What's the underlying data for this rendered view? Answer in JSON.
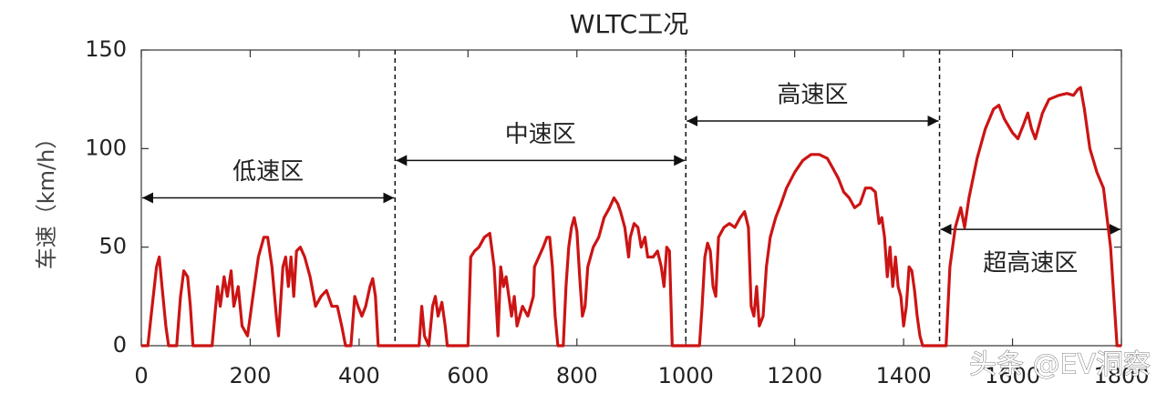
{
  "chart_data": {
    "type": "line",
    "title": "WLTC工况",
    "y_label": "车速（km/h）",
    "watermark": "头条 @EV洞察",
    "color": "#cc1414",
    "xlim": [
      0,
      1800
    ],
    "ylim": [
      0,
      150
    ],
    "xticks": [
      0,
      200,
      400,
      600,
      800,
      1000,
      1200,
      1400,
      1600,
      1800
    ],
    "yticks": [
      0,
      50,
      100,
      150
    ],
    "regions": [
      {
        "label": "低速区",
        "start": 0,
        "end": 466,
        "level": 75
      },
      {
        "label": "中速区",
        "start": 466,
        "end": 1000,
        "level": 94
      },
      {
        "label": "高速区",
        "start": 1000,
        "end": 1466,
        "level": 114
      },
      {
        "label": "超高速区",
        "start": 1466,
        "end": 1800,
        "level": 59
      }
    ],
    "x": [
      0,
      12,
      20,
      28,
      33,
      38,
      45,
      50,
      65,
      72,
      78,
      85,
      90,
      95,
      130,
      140,
      145,
      152,
      158,
      165,
      170,
      178,
      185,
      195,
      205,
      215,
      225,
      232,
      240,
      248,
      252,
      260,
      265,
      270,
      275,
      280,
      285,
      292,
      300,
      310,
      320,
      330,
      340,
      350,
      360,
      368,
      375,
      385,
      392,
      398,
      405,
      412,
      420,
      425,
      430,
      435,
      466,
      510,
      515,
      520,
      528,
      535,
      540,
      545,
      552,
      558,
      562,
      600,
      605,
      612,
      620,
      630,
      640,
      648,
      652,
      655,
      660,
      665,
      670,
      675,
      680,
      685,
      690,
      700,
      710,
      720,
      722,
      730,
      738,
      745,
      750,
      755,
      760,
      765,
      775,
      780,
      785,
      790,
      795,
      800,
      805,
      810,
      815,
      820,
      830,
      840,
      850,
      860,
      868,
      875,
      880,
      888,
      895,
      898,
      905,
      912,
      918,
      925,
      930,
      940,
      948,
      955,
      960,
      965,
      970,
      975,
      1000,
      1025,
      1030,
      1035,
      1040,
      1045,
      1050,
      1055,
      1060,
      1070,
      1080,
      1090,
      1100,
      1108,
      1115,
      1120,
      1125,
      1130,
      1135,
      1142,
      1148,
      1155,
      1165,
      1175,
      1185,
      1200,
      1215,
      1230,
      1245,
      1260,
      1270,
      1280,
      1290,
      1300,
      1310,
      1320,
      1330,
      1340,
      1348,
      1355,
      1360,
      1365,
      1370,
      1375,
      1380,
      1385,
      1390,
      1395,
      1400,
      1405,
      1410,
      1415,
      1420,
      1425,
      1430,
      1435,
      1466,
      1478,
      1485,
      1495,
      1505,
      1512,
      1520,
      1535,
      1550,
      1565,
      1575,
      1585,
      1600,
      1610,
      1620,
      1628,
      1635,
      1642,
      1655,
      1667,
      1685,
      1700,
      1712,
      1720,
      1725,
      1732,
      1742,
      1755,
      1767,
      1780,
      1792,
      1800
    ],
    "values": [
      0,
      0,
      20,
      40,
      45,
      30,
      10,
      0,
      0,
      25,
      38,
      35,
      20,
      0,
      0,
      30,
      20,
      35,
      25,
      38,
      20,
      30,
      10,
      5,
      25,
      45,
      55,
      55,
      40,
      15,
      5,
      40,
      45,
      30,
      45,
      25,
      48,
      50,
      45,
      35,
      20,
      25,
      28,
      20,
      20,
      10,
      0,
      0,
      25,
      20,
      15,
      20,
      30,
      34,
      25,
      0,
      0,
      0,
      20,
      5,
      0,
      20,
      25,
      15,
      22,
      10,
      0,
      0,
      45,
      48,
      50,
      55,
      57,
      40,
      20,
      5,
      40,
      30,
      35,
      25,
      15,
      25,
      10,
      20,
      15,
      25,
      40,
      45,
      50,
      55,
      55,
      40,
      15,
      0,
      0,
      30,
      50,
      60,
      65,
      58,
      35,
      15,
      20,
      40,
      50,
      55,
      65,
      70,
      75,
      72,
      68,
      60,
      45,
      55,
      62,
      60,
      50,
      55,
      45,
      45,
      48,
      40,
      30,
      50,
      48,
      0,
      0,
      0,
      20,
      45,
      52,
      48,
      30,
      25,
      55,
      60,
      62,
      60,
      65,
      68,
      60,
      20,
      15,
      30,
      10,
      15,
      40,
      55,
      65,
      72,
      80,
      88,
      94,
      97,
      97,
      95,
      90,
      85,
      78,
      75,
      70,
      72,
      80,
      80,
      78,
      62,
      65,
      55,
      35,
      50,
      30,
      45,
      30,
      25,
      10,
      20,
      40,
      38,
      28,
      15,
      5,
      0,
      0,
      0,
      40,
      60,
      70,
      60,
      75,
      95,
      110,
      120,
      122,
      115,
      108,
      105,
      112,
      118,
      110,
      105,
      118,
      125,
      127,
      128,
      127,
      130,
      131,
      120,
      100,
      88,
      80,
      50,
      0,
      0
    ]
  }
}
